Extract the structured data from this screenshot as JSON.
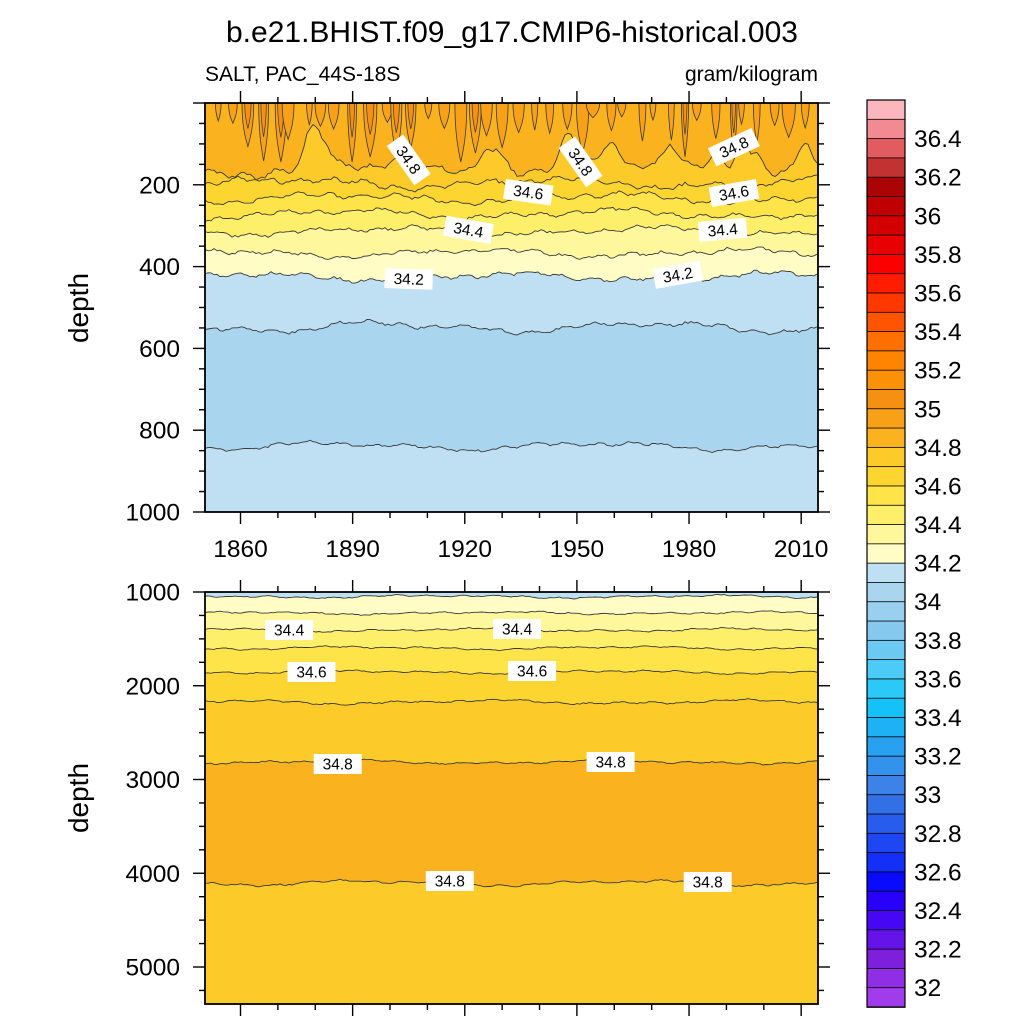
{
  "title": "b.e21.BHIST.f09_g17.CMIP6-historical.003",
  "field_label": "SALT, PAC_44S-18S",
  "units_label": "gram/kilogram",
  "chart_data": {
    "type": "filled-contour-time-depth-section",
    "contour_interval": 0.1,
    "x_axis": {
      "range_years": [
        1850.5,
        2014.5
      ],
      "major_step_years": 30,
      "minor_step_years": 10,
      "labels": [
        "1860",
        "1890",
        "1920",
        "1950",
        "1980",
        "2010"
      ],
      "label_years": [
        1860,
        1890,
        1920,
        1950,
        1980,
        2010
      ]
    },
    "panels": [
      {
        "id": "upper",
        "y_axis_title": "depth",
        "depth_range_m": [
          0,
          1000
        ],
        "tick_labels": [
          "200",
          "400",
          "600",
          "800",
          "1000"
        ],
        "tick_values_m": [
          200,
          400,
          600,
          800,
          1000
        ],
        "major_step_m": 200,
        "minor_step_m": 50,
        "surface_fill_value": "34.8-34.9",
        "surface_fill": "#FAB31F",
        "plumes": {
          "meaning": "near-surface salty tongues 34.9-35.1",
          "fill": "#F8A118",
          "core_fill": "#F69012"
        },
        "contours": [
          {
            "value": 34.8,
            "mean_depth_m": 164,
            "fill_below": "#FCCA29"
          },
          {
            "value": 34.7,
            "mean_depth_m": 196,
            "fill_below": "#FDD531"
          },
          {
            "value": 34.6,
            "mean_depth_m": 232,
            "fill_below": "#FEE448"
          },
          {
            "value": 34.5,
            "mean_depth_m": 271,
            "fill_below": "#FEEF6B"
          },
          {
            "value": 34.4,
            "mean_depth_m": 313,
            "fill_below": "#FFF79C"
          },
          {
            "value": 34.3,
            "mean_depth_m": 367,
            "fill_below": "#FFFCC6"
          },
          {
            "value": 34.2,
            "mean_depth_m": 425,
            "fill_below": "#BFDFF3"
          },
          {
            "value": 34.1,
            "mean_depth_m": 548,
            "fill_below": "#A9D5EF"
          },
          {
            "value": 34.1,
            "mean_depth_m": 839,
            "fill_below": "#BFDFF3"
          }
        ],
        "contour_labels": [
          {
            "text": "34.8",
            "year": 1905,
            "depth_m": 139,
            "rotation_deg": 55
          },
          {
            "text": "34.8",
            "year": 1951,
            "depth_m": 144,
            "rotation_deg": 55
          },
          {
            "text": "34.8",
            "year": 1992,
            "depth_m": 108,
            "rotation_deg": -25
          },
          {
            "text": "34.6",
            "year": 1937,
            "depth_m": 218,
            "rotation_deg": 8
          },
          {
            "text": "34.6",
            "year": 1992,
            "depth_m": 220,
            "rotation_deg": -10
          },
          {
            "text": "34.4",
            "year": 1921,
            "depth_m": 310,
            "rotation_deg": 10
          },
          {
            "text": "34.4",
            "year": 1989,
            "depth_m": 310,
            "rotation_deg": -5
          },
          {
            "text": "34.2",
            "year": 1905,
            "depth_m": 430,
            "rotation_deg": 2
          },
          {
            "text": "34.2",
            "year": 1977,
            "depth_m": 420,
            "rotation_deg": -10
          }
        ]
      },
      {
        "id": "lower",
        "y_axis_title": "depth",
        "depth_range_m": [
          1000,
          5400
        ],
        "tick_labels": [
          "1000",
          "2000",
          "3000",
          "4000",
          "5000"
        ],
        "tick_values_m": [
          1000,
          2000,
          3000,
          4000,
          5000
        ],
        "major_step_m": 1000,
        "minor_step_m": 250,
        "surface_fill_value": "34.1-34.2",
        "surface_fill": "#BFDFF3",
        "contours": [
          {
            "value": 34.2,
            "mean_depth_m": 1048,
            "fill_below": "#FFFCC6"
          },
          {
            "value": 34.3,
            "mean_depth_m": 1224,
            "fill_below": "#FFF79C"
          },
          {
            "value": 34.4,
            "mean_depth_m": 1405,
            "fill_below": "#FEEF6B"
          },
          {
            "value": 34.5,
            "mean_depth_m": 1597,
            "fill_below": "#FEE448"
          },
          {
            "value": 34.6,
            "mean_depth_m": 1853,
            "fill_below": "#FDD531"
          },
          {
            "value": 34.7,
            "mean_depth_m": 2173,
            "fill_below": "#FCCA29"
          },
          {
            "value": 34.8,
            "mean_depth_m": 2813,
            "fill_below": "#FAB31F"
          },
          {
            "value": 34.8,
            "mean_depth_m": 4104,
            "fill_below": "#FCCA29"
          }
        ],
        "contour_labels": [
          {
            "text": "34.4",
            "year": 1873,
            "depth_m": 1405,
            "rotation_deg": 0
          },
          {
            "text": "34.4",
            "year": 1934,
            "depth_m": 1395,
            "rotation_deg": 0
          },
          {
            "text": "34.6",
            "year": 1879,
            "depth_m": 1853,
            "rotation_deg": 0
          },
          {
            "text": "34.6",
            "year": 1938,
            "depth_m": 1843,
            "rotation_deg": 0
          },
          {
            "text": "34.8",
            "year": 1886,
            "depth_m": 2835,
            "rotation_deg": 0
          },
          {
            "text": "34.8",
            "year": 1959,
            "depth_m": 2813,
            "rotation_deg": 0
          },
          {
            "text": "34.8",
            "year": 1916,
            "depth_m": 4083,
            "rotation_deg": 0
          },
          {
            "text": "34.8",
            "year": 1985,
            "depth_m": 4093,
            "rotation_deg": 0
          }
        ]
      }
    ],
    "colorbar": {
      "labels_top_to_bottom": [
        "36.4",
        "36.2",
        "36",
        "35.8",
        "35.6",
        "35.4",
        "35.2",
        "35",
        "34.8",
        "34.6",
        "34.4",
        "34.2",
        "34",
        "33.8",
        "33.6",
        "33.4",
        "33.2",
        "33",
        "32.8",
        "32.6",
        "32.4",
        "32.2",
        "32"
      ],
      "box_value_step": 0.1,
      "value_range": [
        31.9,
        36.6
      ],
      "colors_bottom_to_top": [
        "#A03CEC",
        "#8F2EE4",
        "#7D20DC",
        "#6414E8",
        "#4608F4",
        "#2800FA",
        "#0A0AFF",
        "#1430F8",
        "#1E46F2",
        "#285CEC",
        "#3270E6",
        "#3C82E8",
        "#3292EC",
        "#28A2F0",
        "#1EB2F4",
        "#14C2F8",
        "#2BC8F8",
        "#4CCBF6",
        "#6CC9F2",
        "#86C9EF",
        "#99CFEF",
        "#A9D5EF",
        "#BFDFF3",
        "#FFFCC6",
        "#FFF79C",
        "#FEEF6B",
        "#FEE448",
        "#FDD531",
        "#FCCA29",
        "#FAB31F",
        "#F8A118",
        "#F69012",
        "#FA9106",
        "#FF8400",
        "#FF7000",
        "#FF5400",
        "#FF3800",
        "#FF1C00",
        "#FC0000",
        "#E80000",
        "#D40000",
        "#C00000",
        "#AA0404",
        "#C23232",
        "#E25B60",
        "#F28A92",
        "#FBB6BE"
      ]
    }
  }
}
